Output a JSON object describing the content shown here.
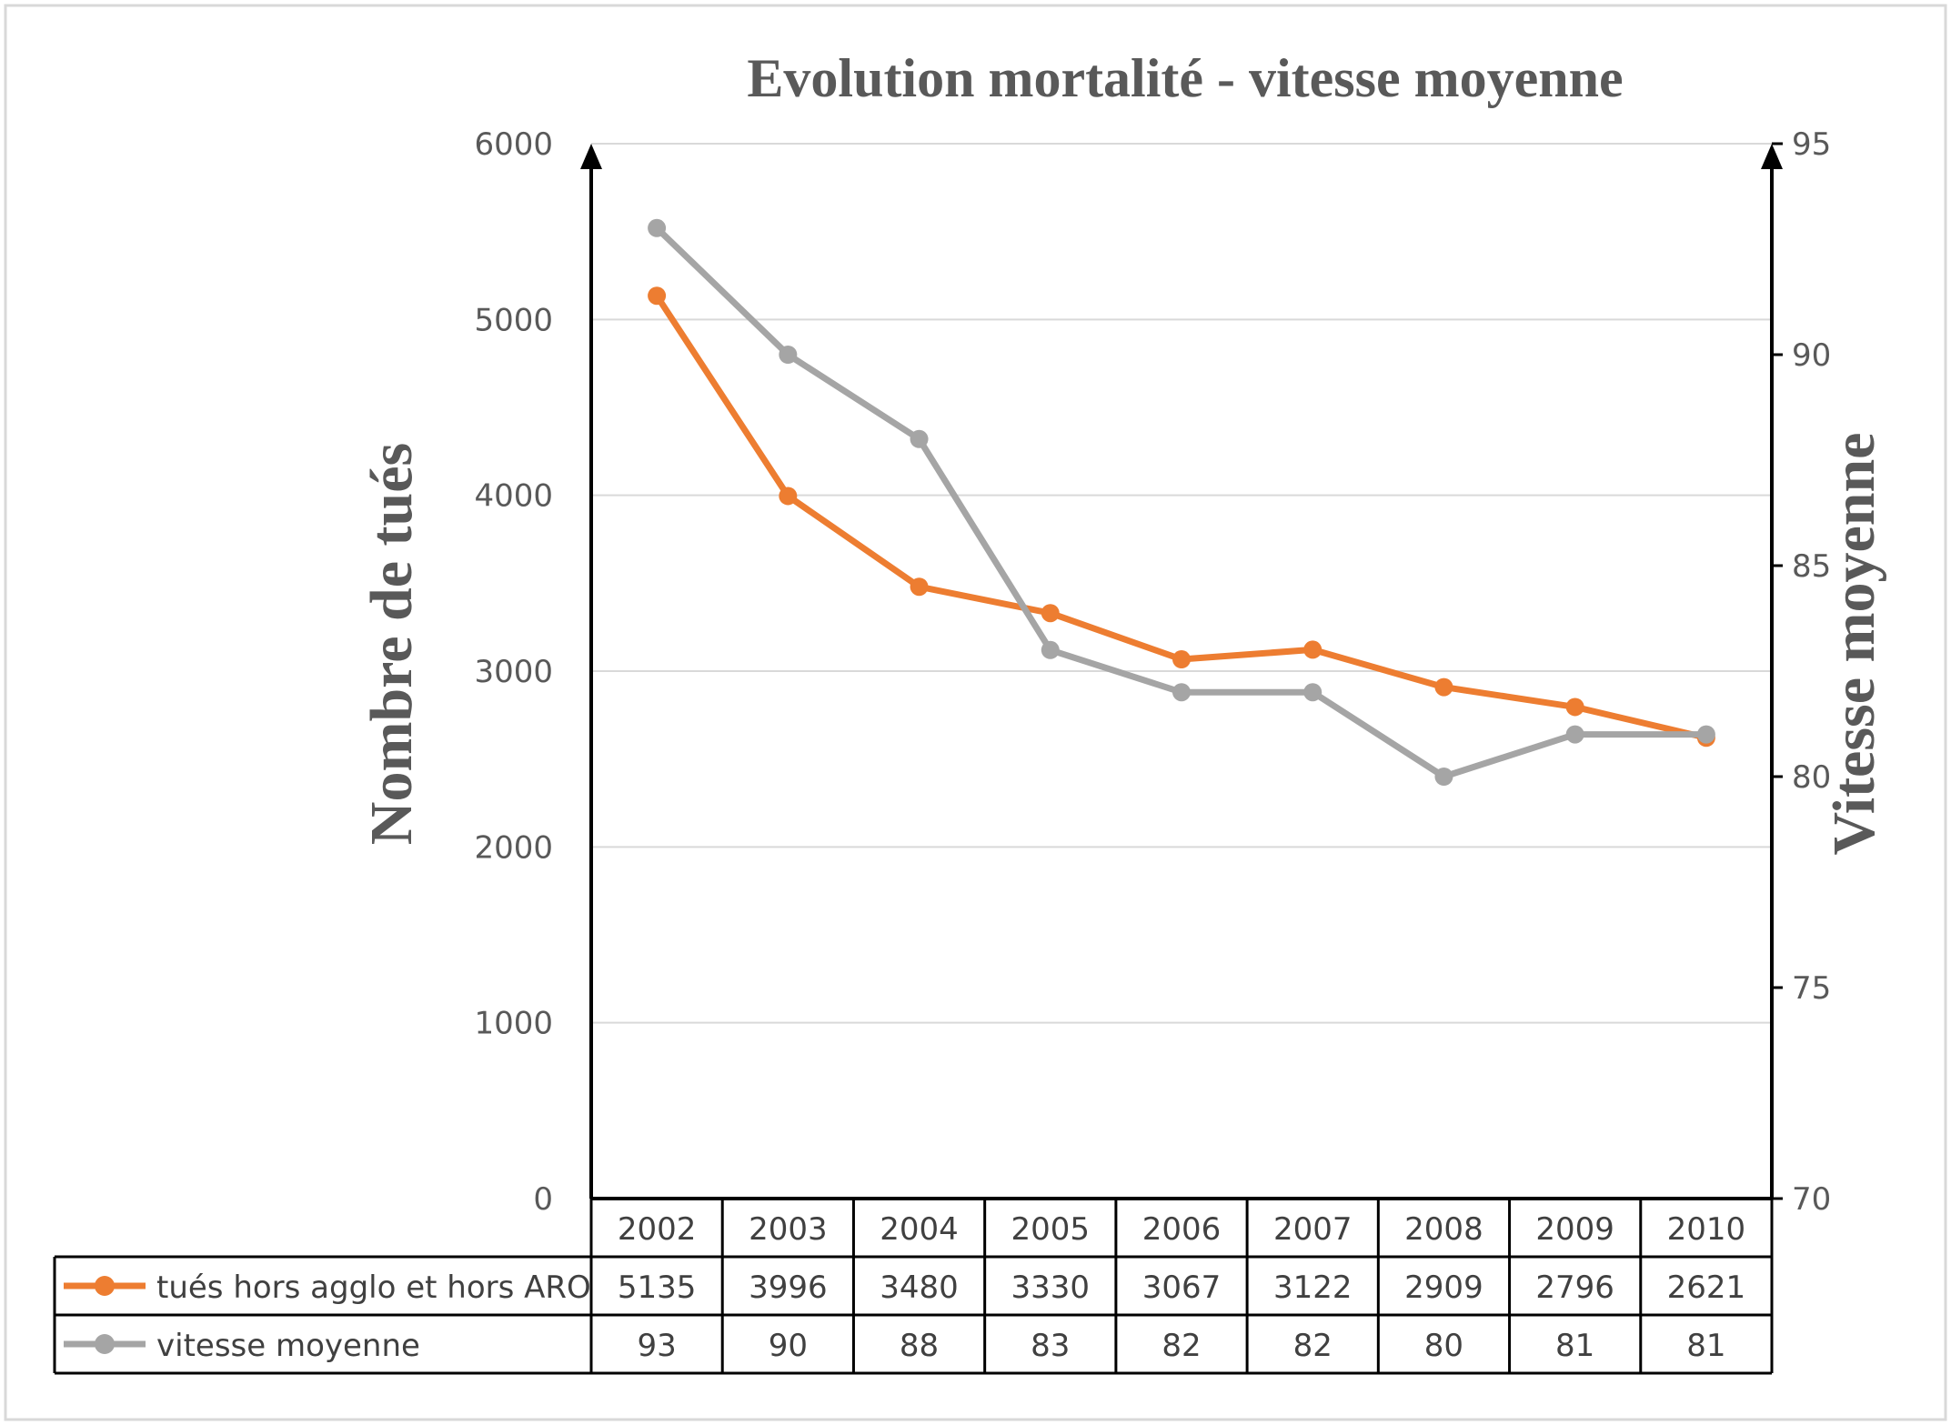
{
  "chart_data": {
    "type": "line",
    "title": "Evolution mortalité - vitesse moyenne",
    "ylabel": "Nombre de tués",
    "y2label": "Vitesse moyenne",
    "categories": [
      "2002",
      "2003",
      "2004",
      "2005",
      "2006",
      "2007",
      "2008",
      "2009",
      "2010"
    ],
    "ylim": [
      0,
      6000
    ],
    "y_ticks": [
      "0",
      "1000",
      "2000",
      "3000",
      "4000",
      "5000",
      "6000"
    ],
    "y2lim": [
      70,
      95
    ],
    "y2_ticks": [
      "70",
      "75",
      "80",
      "85",
      "90",
      "95"
    ],
    "grid": true,
    "legend": "data-table",
    "series": [
      {
        "name": "tués hors agglo et hors ARO",
        "axis": "left",
        "color": "#ED7D31",
        "values": [
          5135,
          3996,
          3480,
          3330,
          3067,
          3122,
          2909,
          2796,
          2621
        ]
      },
      {
        "name": "vitesse moyenne",
        "axis": "right",
        "color": "#A5A5A5",
        "values": [
          93,
          90,
          88,
          83,
          82,
          82,
          80,
          81,
          81
        ]
      }
    ]
  }
}
